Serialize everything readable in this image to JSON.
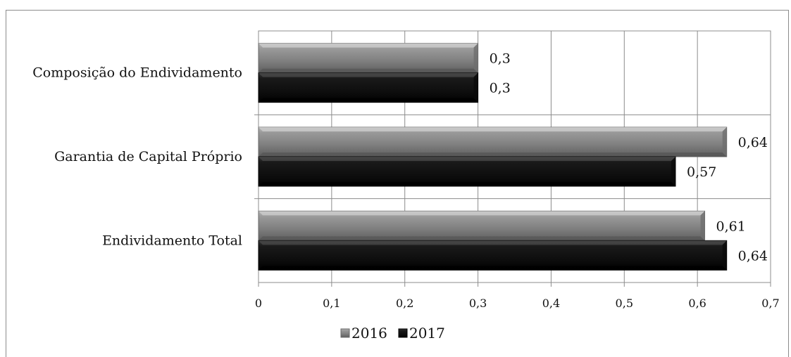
{
  "chart_data": {
    "type": "bar",
    "orientation": "horizontal",
    "categories": [
      "Endividamento Total",
      "Garantia de Capital Próprio",
      "Composição do Endividamento"
    ],
    "series": [
      {
        "name": "2016",
        "values": [
          0.61,
          0.64,
          0.3
        ],
        "labels": [
          "0,61",
          "0,64",
          "0,3"
        ],
        "color": "#8a8a8a"
      },
      {
        "name": "2017",
        "values": [
          0.64,
          0.57,
          0.3
        ],
        "labels": [
          "0,64",
          "0,57",
          "0,3"
        ],
        "color": "#141414"
      }
    ],
    "xlim": [
      0,
      0.7
    ],
    "xticks": [
      0,
      0.1,
      0.2,
      0.3,
      0.4,
      0.5,
      0.6,
      0.7
    ],
    "xtick_labels": [
      "0",
      "0,1",
      "0,2",
      "0,3",
      "0,4",
      "0,5",
      "0,6",
      "0,7"
    ],
    "grid": true,
    "legend_position": "bottom"
  }
}
